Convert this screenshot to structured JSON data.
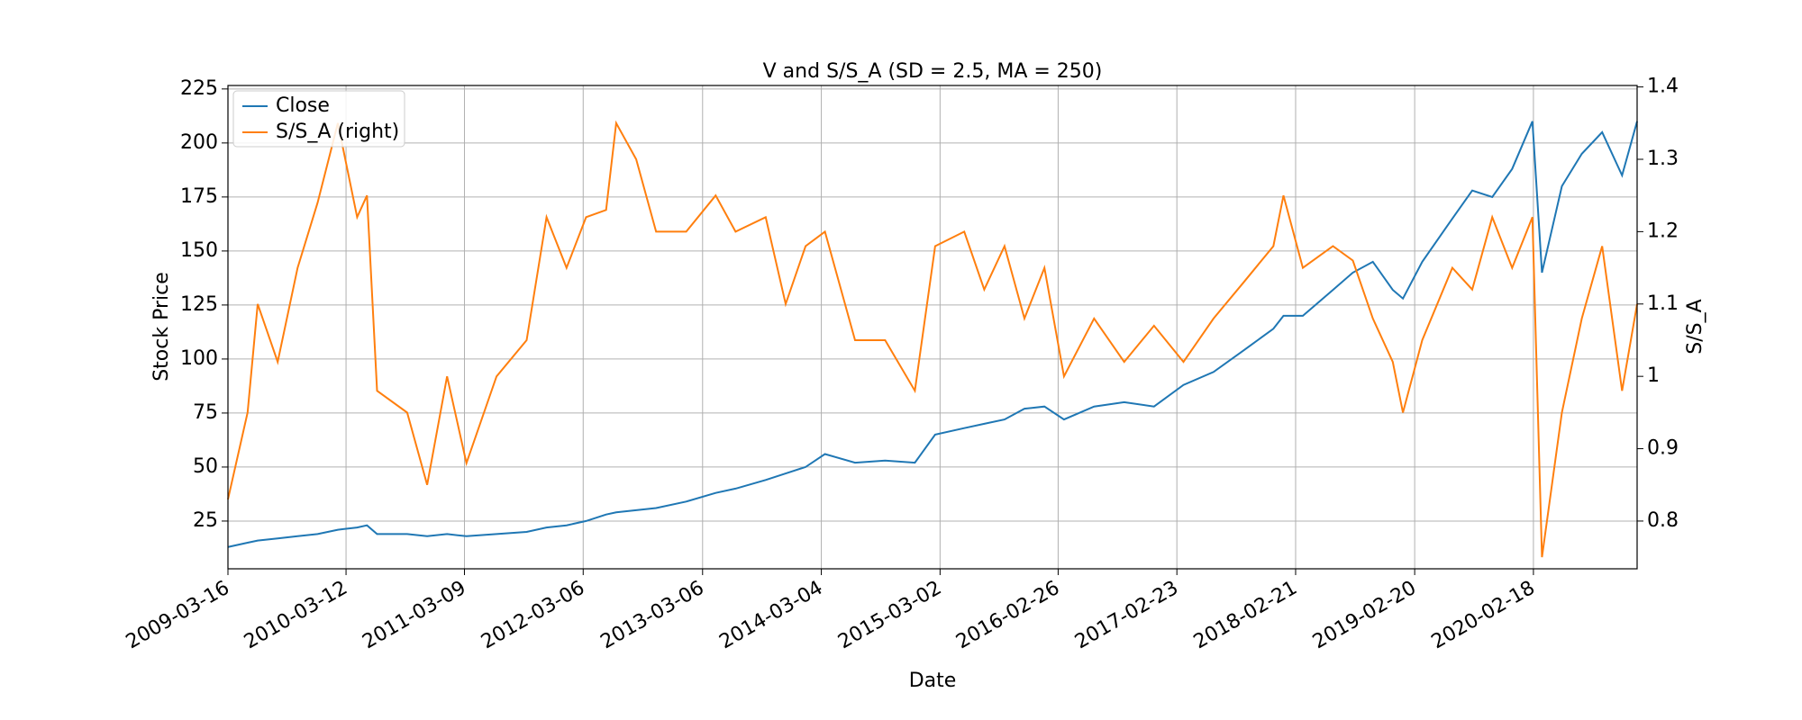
{
  "chart_data": {
    "type": "line",
    "title": "V and S/S_A (SD = 2.5, MA = 250)",
    "x_label": "Date",
    "y_label": "Stock Price",
    "y2_label": "S/S_A",
    "x": [
      "2009-03-16",
      "2009-05-15",
      "2009-06-15",
      "2009-08-15",
      "2009-10-15",
      "2009-12-15",
      "2010-02-15",
      "2010-04-15",
      "2010-05-15",
      "2010-06-15",
      "2010-09-15",
      "2010-11-15",
      "2011-01-15",
      "2011-03-15",
      "2011-06-15",
      "2011-09-15",
      "2011-11-15",
      "2012-01-15",
      "2012-03-15",
      "2012-05-15",
      "2012-06-15",
      "2012-08-15",
      "2012-10-15",
      "2013-01-15",
      "2013-04-15",
      "2013-06-15",
      "2013-09-15",
      "2013-11-15",
      "2014-01-15",
      "2014-03-15",
      "2014-06-15",
      "2014-09-15",
      "2014-12-15",
      "2015-02-15",
      "2015-05-15",
      "2015-07-15",
      "2015-09-15",
      "2015-11-15",
      "2016-01-15",
      "2016-03-15",
      "2016-06-15",
      "2016-09-15",
      "2016-12-15",
      "2017-03-15",
      "2017-06-15",
      "2017-09-15",
      "2017-12-15",
      "2018-01-15",
      "2018-03-15",
      "2018-06-15",
      "2018-08-15",
      "2018-10-15",
      "2018-12-15",
      "2019-01-15",
      "2019-03-15",
      "2019-06-15",
      "2019-08-15",
      "2019-10-15",
      "2019-12-15",
      "2020-02-15",
      "2020-03-15",
      "2020-05-15",
      "2020-07-15",
      "2020-09-15",
      "2020-11-15",
      "2020-12-31"
    ],
    "series": [
      {
        "name": "Close",
        "color": "#1f77b4",
        "values": [
          13,
          15,
          16,
          17,
          18,
          19,
          21,
          22,
          23,
          19,
          19,
          18,
          19,
          18,
          19,
          20,
          22,
          23,
          25,
          28,
          29,
          30,
          31,
          34,
          38,
          40,
          44,
          47,
          50,
          56,
          52,
          53,
          52,
          65,
          68,
          70,
          72,
          77,
          78,
          72,
          78,
          80,
          78,
          88,
          94,
          104,
          114,
          120,
          120,
          132,
          140,
          145,
          132,
          128,
          145,
          165,
          178,
          175,
          188,
          210,
          140,
          180,
          195,
          205,
          185,
          210
        ]
      },
      {
        "name": "S/S_A (right)",
        "color": "#ff7f0e",
        "axis": "y2",
        "values": [
          0.83,
          0.95,
          1.1,
          1.02,
          1.15,
          1.24,
          1.35,
          1.22,
          1.25,
          0.98,
          0.95,
          0.85,
          1.0,
          0.88,
          1.0,
          1.05,
          1.22,
          1.15,
          1.22,
          1.23,
          1.35,
          1.3,
          1.2,
          1.2,
          1.25,
          1.2,
          1.22,
          1.1,
          1.18,
          1.2,
          1.05,
          1.05,
          0.98,
          1.18,
          1.2,
          1.12,
          1.18,
          1.08,
          1.15,
          1.0,
          1.08,
          1.02,
          1.07,
          1.02,
          1.08,
          1.13,
          1.18,
          1.25,
          1.15,
          1.18,
          1.16,
          1.08,
          1.02,
          0.95,
          1.05,
          1.15,
          1.12,
          1.22,
          1.15,
          1.22,
          0.75,
          0.95,
          1.08,
          1.18,
          0.98,
          1.1
        ]
      }
    ],
    "xlim": [
      "2009-03-16",
      "2020-12-31"
    ],
    "xticks": [
      "2009-03-16",
      "2010-03-12",
      "2011-03-09",
      "2012-03-06",
      "2013-03-06",
      "2014-03-04",
      "2015-03-02",
      "2016-02-26",
      "2017-02-23",
      "2018-02-21",
      "2019-02-20",
      "2020-02-18"
    ],
    "ylim": [
      2.9,
      226.6
    ],
    "yticks": [
      25,
      50,
      75,
      100,
      125,
      150,
      175,
      200,
      225
    ],
    "y2lim": [
      0.734,
      1.402
    ],
    "y2ticks": [
      0.8,
      0.9,
      1.0,
      1.1,
      1.2,
      1.3,
      1.4
    ],
    "grid": true,
    "legend": "upper left"
  }
}
